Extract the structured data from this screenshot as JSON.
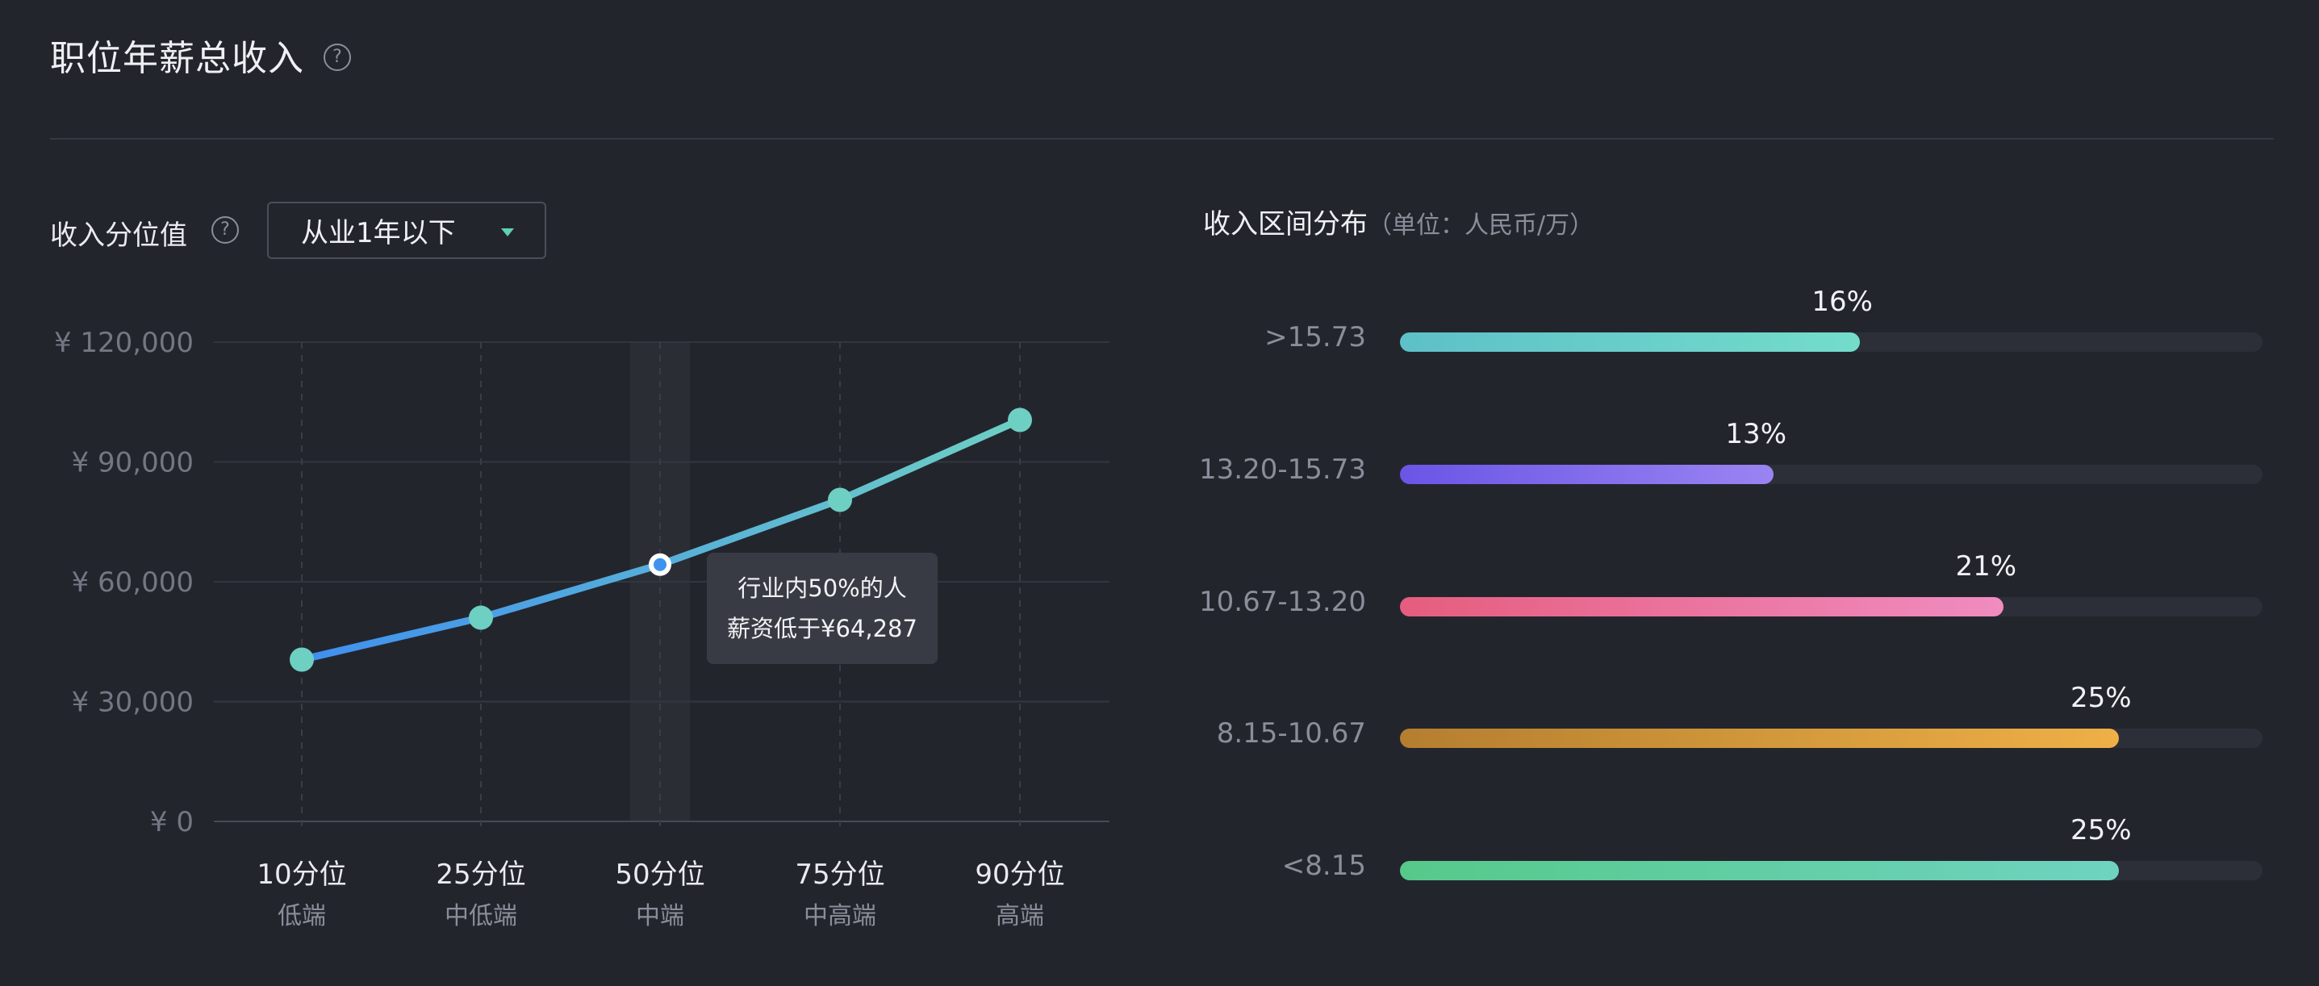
{
  "header": {
    "title": "职位年薪总收入",
    "help": "?"
  },
  "controls": {
    "percentile_label": "收入分位值",
    "help": "?",
    "experience_select": "从业1年以下"
  },
  "tooltip": {
    "line1": "行业内50%的人",
    "line2": "薪资低于¥64,287"
  },
  "colors": {
    "background": "#23252d",
    "line_start": "#3f8ff0",
    "line_end": "#6ecfc3",
    "point": "#6ecfc3",
    "highlight_band": "#2b2d35"
  },
  "chart_data": [
    {
      "type": "line",
      "title": "",
      "categories": [
        "10分位",
        "25分位",
        "50分位",
        "75分位",
        "90分位"
      ],
      "sublabels": [
        "低端",
        "中低端",
        "中端",
        "中高端",
        "高端"
      ],
      "values": [
        40500,
        51000,
        64287,
        80500,
        100500
      ],
      "ylim": [
        0,
        120000
      ],
      "yticks": [
        "¥ 0",
        "¥ 30,000",
        "¥ 60,000",
        "¥ 90,000",
        "¥ 120,000"
      ],
      "ytick_values": [
        0,
        30000,
        60000,
        90000,
        120000
      ],
      "highlighted_index": 2,
      "grid": true
    },
    {
      "type": "bar",
      "title": "收入区间分布",
      "unit": "（单位：人民币/万）",
      "categories": [
        ">15.73",
        "13.20-15.73",
        "10.67-13.20",
        "8.15-10.67",
        "<8.15"
      ],
      "values": [
        16,
        13,
        21,
        25,
        25
      ],
      "value_labels": [
        "16%",
        "13%",
        "21%",
        "25%",
        "25%"
      ],
      "xlim": [
        0,
        30
      ],
      "gradients": [
        [
          "#5ec0c8",
          "#74dccb"
        ],
        [
          "#6a55e6",
          "#9a84f2"
        ],
        [
          "#e55d7e",
          "#f08cc0"
        ],
        [
          "#b57e2f",
          "#eeb047"
        ],
        [
          "#56c98a",
          "#6fd3c0"
        ]
      ]
    }
  ]
}
